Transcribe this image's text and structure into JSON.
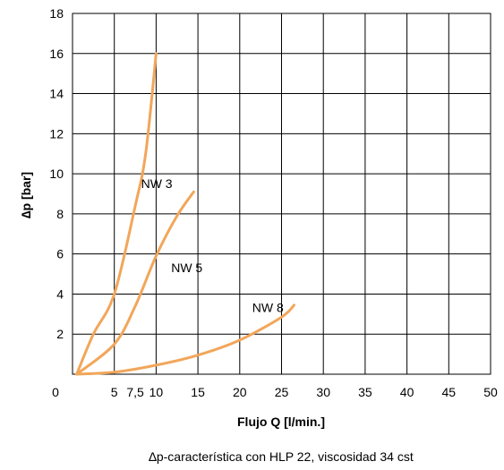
{
  "chart_data": {
    "type": "line",
    "xlabel": "Flujo Q [l/min.]",
    "ylabel": "∆p [bar]",
    "caption": "∆p-característica con HLP 22, viscosidad 34 cst",
    "xlim": [
      0,
      50
    ],
    "ylim": [
      0,
      18
    ],
    "x_ticks": [
      "0",
      "5",
      "7,5",
      "10",
      "15",
      "20",
      "25",
      "30",
      "35",
      "40",
      "45",
      "50"
    ],
    "x_tick_values": [
      0,
      5,
      7.5,
      10,
      15,
      20,
      25,
      30,
      35,
      40,
      45,
      50
    ],
    "y_ticks": [
      "2",
      "4",
      "6",
      "8",
      "10",
      "12",
      "14",
      "16",
      "18"
    ],
    "y_tick_values": [
      2,
      4,
      6,
      8,
      10,
      12,
      14,
      16,
      18
    ],
    "grid": true,
    "series_color": "#f2a65a",
    "series": [
      {
        "name": "NW 3",
        "x": [
          0.5,
          2.5,
          5,
          7.5,
          8.75,
          10
        ],
        "y": [
          0,
          2,
          4,
          8.4,
          11,
          16
        ]
      },
      {
        "name": "NW 5",
        "x": [
          0.5,
          5,
          7.5,
          10,
          12.5,
          14.5
        ],
        "y": [
          0,
          1.5,
          3.4,
          5.9,
          7.9,
          9.1
        ]
      },
      {
        "name": "NW 8",
        "x": [
          0.5,
          5,
          10,
          15,
          20,
          25,
          26.5
        ],
        "y": [
          0,
          0.1,
          0.45,
          0.95,
          1.7,
          2.85,
          3.45
        ]
      }
    ],
    "label_positions": [
      {
        "series": "NW 3",
        "x": 8.2,
        "y": 9.3
      },
      {
        "series": "NW 5",
        "x": 11.8,
        "y": 5.1
      },
      {
        "series": "NW 8",
        "x": 21.5,
        "y": 3.1
      }
    ]
  }
}
